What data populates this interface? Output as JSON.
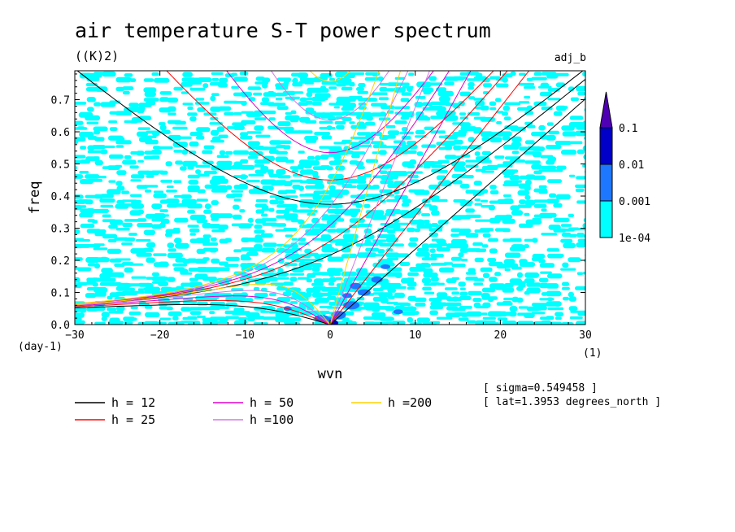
{
  "chart_data": {
    "type": "heatmap",
    "title": "air temperature S-T power spectrum",
    "subtitle": "((K)2)",
    "tag": "adj_b",
    "xlabel": "wvn",
    "ylabel": "freq",
    "x_unit": "(1)",
    "y_unit": "(day-1)",
    "xlim": [
      -30,
      30
    ],
    "ylim": [
      0,
      0.79
    ],
    "x_ticks": [
      -30,
      -20,
      -10,
      0,
      10,
      20,
      30
    ],
    "x_tick_labels": [
      "−30",
      "−20",
      "−10",
      "0",
      "10",
      "20",
      "30"
    ],
    "y_ticks": [
      0,
      0.1,
      0.2,
      0.3,
      0.4,
      0.5,
      0.6,
      0.7
    ],
    "y_tick_labels": [
      "0.0",
      "0.1",
      "0.2",
      "0.3",
      "0.4",
      "0.5",
      "0.6",
      "0.7"
    ],
    "colorbar": {
      "levels": [
        "1e-04",
        "0.001",
        "0.01",
        "0.1"
      ],
      "colors": [
        "#00ffff",
        "#1e78ff",
        "#0000c8",
        "#5000b4"
      ]
    },
    "curves": [
      {
        "label": "h = 12",
        "h": 12,
        "color": "#000000"
      },
      {
        "label": "h = 25",
        "h": 25,
        "color": "#ff0000"
      },
      {
        "label": "h = 50",
        "h": 50,
        "color": "#e000c8"
      },
      {
        "label": "h =100",
        "h": 100,
        "color": "#d278e6"
      },
      {
        "label": "h =200",
        "h": 200,
        "color": "#ffd200"
      }
    ],
    "annotations": [
      "[ sigma=0.549458 ]",
      "[ lat=1.3953 degrees_north ]"
    ]
  }
}
